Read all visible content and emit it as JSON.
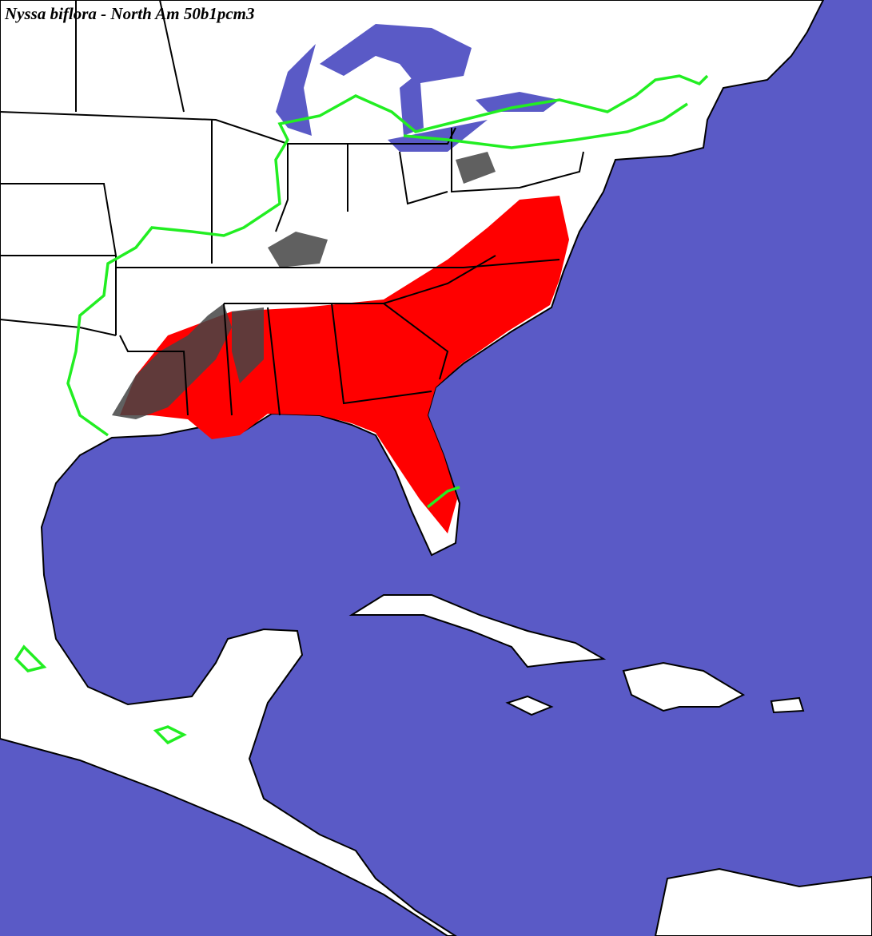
{
  "title": "Nyssa biflora - North Am 50b1pcm3"
}
